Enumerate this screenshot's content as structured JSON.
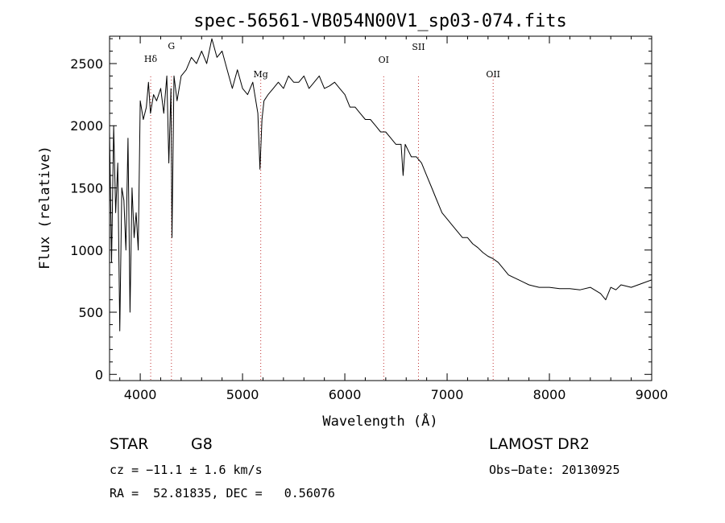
{
  "chart_data": {
    "type": "line",
    "title": "spec-56561-VB054N00V1_sp03-074.fits",
    "xlabel": "Wavelength (Å)",
    "ylabel": "Flux (relative)",
    "xlim": [
      3700,
      9000
    ],
    "ylim": [
      -50,
      2720
    ],
    "x_ticks": [
      4000,
      5000,
      6000,
      7000,
      8000,
      9000
    ],
    "y_ticks": [
      0,
      500,
      1000,
      1500,
      2000,
      2500
    ],
    "grid": false,
    "series": [
      {
        "x": [
          3700,
          3720,
          3740,
          3760,
          3780,
          3800,
          3820,
          3840,
          3860,
          3880,
          3900,
          3920,
          3940,
          3960,
          3980,
          4000,
          4030,
          4060,
          4080,
          4100,
          4130,
          4160,
          4200,
          4230,
          4260,
          4280,
          4300,
          4310,
          4330,
          4360,
          4400,
          4450,
          4500,
          4550,
          4600,
          4650,
          4700,
          4750,
          4800,
          4850,
          4900,
          4950,
          5000,
          5050,
          5100,
          5150,
          5170,
          5190,
          5210,
          5250,
          5300,
          5350,
          5400,
          5450,
          5500,
          5550,
          5600,
          5650,
          5700,
          5750,
          5800,
          5850,
          5900,
          5950,
          6000,
          6050,
          6100,
          6150,
          6200,
          6250,
          6300,
          6350,
          6400,
          6450,
          6500,
          6550,
          6570,
          6590,
          6620,
          6650,
          6700,
          6750,
          6800,
          6850,
          6900,
          6950,
          7000,
          7050,
          7100,
          7150,
          7200,
          7250,
          7300,
          7350,
          7400,
          7450,
          7500,
          7550,
          7600,
          7650,
          7700,
          7750,
          7800,
          7850,
          7900,
          7950,
          8000,
          8100,
          8200,
          8300,
          8400,
          8500,
          8550,
          8600,
          8650,
          8700,
          8800,
          8900,
          9000
        ],
        "y": [
          1950,
          900,
          2000,
          1300,
          1700,
          350,
          1500,
          1400,
          1000,
          1900,
          500,
          1500,
          1100,
          1300,
          1000,
          2200,
          2050,
          2150,
          2350,
          2100,
          2250,
          2200,
          2300,
          2100,
          2400,
          1700,
          2300,
          1100,
          2400,
          2200,
          2400,
          2450,
          2550,
          2500,
          2600,
          2500,
          2700,
          2550,
          2600,
          2450,
          2300,
          2450,
          2300,
          2250,
          2350,
          2100,
          1650,
          2050,
          2200,
          2250,
          2300,
          2350,
          2300,
          2400,
          2350,
          2350,
          2400,
          2300,
          2350,
          2400,
          2300,
          2320,
          2350,
          2300,
          2250,
          2150,
          2150,
          2100,
          2050,
          2050,
          2000,
          1950,
          1950,
          1900,
          1850,
          1850,
          1600,
          1850,
          1800,
          1750,
          1750,
          1700,
          1600,
          1500,
          1400,
          1300,
          1250,
          1200,
          1150,
          1100,
          1100,
          1050,
          1020,
          980,
          950,
          930,
          900,
          850,
          800,
          780,
          760,
          740,
          720,
          710,
          700,
          700,
          700,
          690,
          690,
          680,
          700,
          650,
          600,
          700,
          680,
          720,
          700,
          730,
          760
        ]
      }
    ],
    "reference_lines": [
      {
        "label": "Hδ",
        "x": 4102
      },
      {
        "label": "G",
        "x": 4305
      },
      {
        "label": "Mg",
        "x": 5178
      },
      {
        "label": "OI",
        "x": 6380
      },
      {
        "label": "SII",
        "x": 6720
      },
      {
        "label": "OII",
        "x": 7450
      }
    ]
  },
  "info": {
    "object_class": "STAR",
    "subclass": "G8",
    "survey": "LAMOST DR2",
    "cz": "cz = −11.1 ± 1.6 km/s",
    "obs_date": "Obs−Date: 20130925",
    "coords": "RA =  52.81835, DEC =   0.56076"
  }
}
